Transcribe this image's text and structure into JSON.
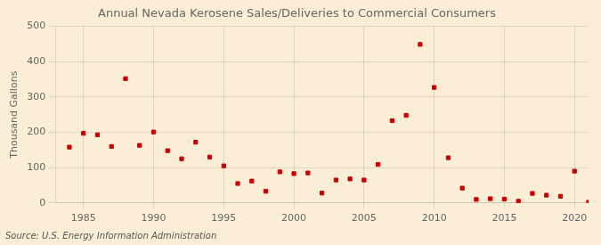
{
  "chart_data": {
    "type": "scatter",
    "title": "Annual Nevada Kerosene Sales/Deliveries to Commercial Consumers",
    "ylabel": "Thousand Gallons",
    "annotations": [
      "Source: U.S. Energy Information Administration"
    ],
    "x": [
      1984,
      1985,
      1986,
      1987,
      1988,
      1989,
      1990,
      1991,
      1992,
      1993,
      1994,
      1995,
      1996,
      1997,
      1998,
      1999,
      2000,
      2001,
      2002,
      2003,
      2004,
      2005,
      2006,
      2007,
      2008,
      2009,
      2010,
      2011,
      2012,
      2013,
      2014,
      2015,
      2016,
      2017,
      2018,
      2019,
      2020,
      2021
    ],
    "values": [
      158,
      197,
      193,
      160,
      352,
      163,
      201,
      148,
      125,
      172,
      130,
      105,
      55,
      62,
      33,
      88,
      83,
      85,
      28,
      65,
      68,
      65,
      109,
      233,
      248,
      449,
      327,
      128,
      42,
      10,
      12,
      11,
      5,
      27,
      22,
      19,
      90,
      2
    ],
    "color": "#cc0000",
    "marker": "square",
    "xlim": [
      1983,
      2021
    ],
    "xticks": [
      1985,
      1990,
      1995,
      2000,
      2005,
      2010,
      2015,
      2020
    ],
    "ylim": [
      0,
      500
    ],
    "yticks": [
      0,
      100,
      200,
      300,
      400,
      500
    ],
    "grid": true
  }
}
